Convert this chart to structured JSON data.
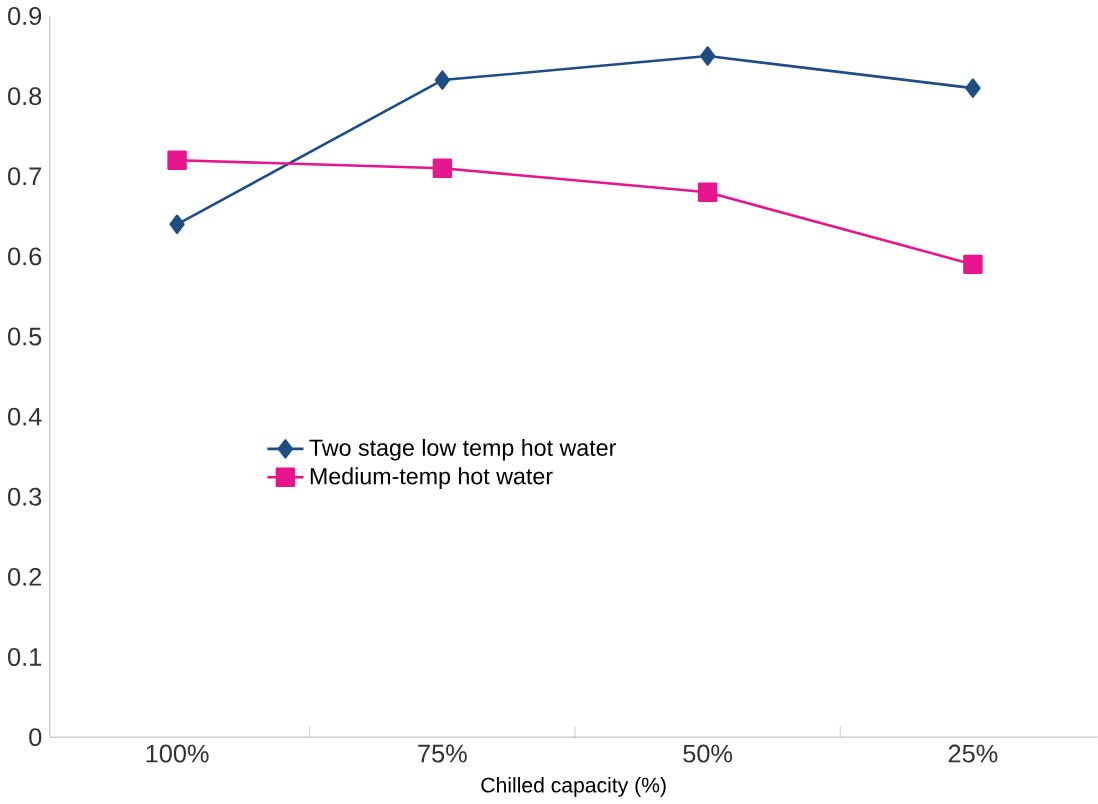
{
  "chart_data": {
    "type": "line",
    "xlabel": "Chilled capacity (%)",
    "categories": [
      "100%",
      "75%",
      "50%",
      "25%"
    ],
    "series": [
      {
        "name": "Two stage low temp hot water",
        "color": "#1f4e85",
        "marker": "diamond",
        "values": [
          0.64,
          0.82,
          0.85,
          0.81
        ]
      },
      {
        "name": "Medium-temp hot water",
        "color": "#e6158c",
        "marker": "square",
        "values": [
          0.72,
          0.71,
          0.68,
          0.59
        ]
      }
    ],
    "ylim": [
      0,
      0.9
    ],
    "yticks": [
      0,
      0.1,
      0.2,
      0.3,
      0.4,
      0.5,
      0.6,
      0.7,
      0.8,
      0.9
    ],
    "grid": false,
    "legend": "left",
    "line_style": "solid"
  }
}
